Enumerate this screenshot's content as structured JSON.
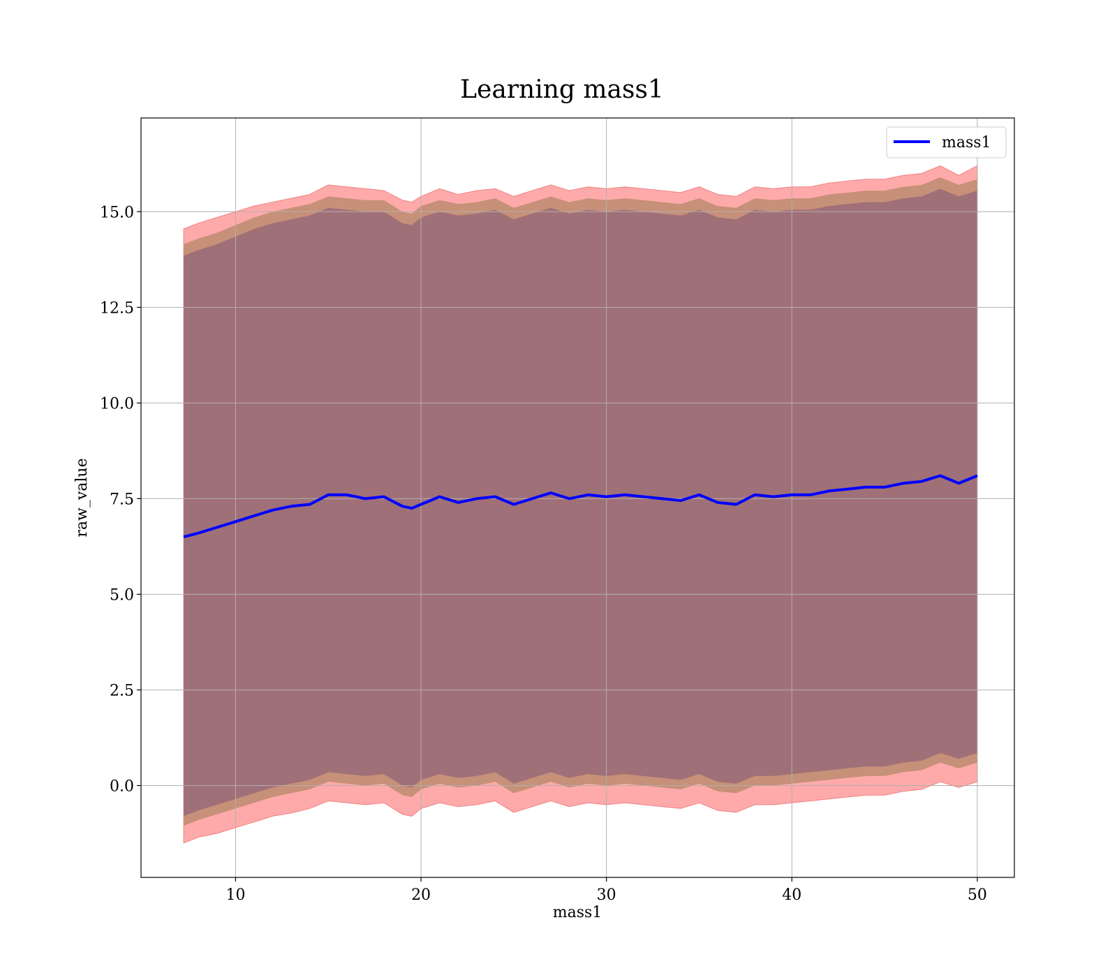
{
  "chart_data": {
    "type": "line",
    "title": "Learning mass1",
    "xlabel": "mass1",
    "ylabel": "raw_value",
    "xlim": [
      4.9,
      52.0
    ],
    "ylim": [
      -2.4,
      17.45
    ],
    "xticks": [
      10,
      20,
      30,
      40,
      50
    ],
    "xtick_labels": [
      "10",
      "20",
      "30",
      "40",
      "50"
    ],
    "yticks": [
      0.0,
      2.5,
      5.0,
      7.5,
      10.0,
      12.5,
      15.0
    ],
    "ytick_labels": [
      "0.0",
      "2.5",
      "5.0",
      "7.5",
      "10.0",
      "12.5",
      "15.0"
    ],
    "grid": true,
    "legend": {
      "location": "top-right",
      "entries": [
        "mass1"
      ]
    },
    "colors": {
      "line": "#0000ff",
      "outer_band": "#ffaaaa",
      "outer_band_edge": "#f08080",
      "middle_band": "#c79078",
      "inner_band": "#a07078",
      "grid": "#b0b0b0"
    },
    "x": [
      7.2,
      8.0,
      9.0,
      10.0,
      11.0,
      12.0,
      13.0,
      14.0,
      15.0,
      16.0,
      17.0,
      18.0,
      19.0,
      19.5,
      20.0,
      21.0,
      22.0,
      23.0,
      24.0,
      25.0,
      26.0,
      27.0,
      28.0,
      29.0,
      30.0,
      31.0,
      32.0,
      33.0,
      34.0,
      35.0,
      36.0,
      37.0,
      38.0,
      39.0,
      40.0,
      41.0,
      42.0,
      43.0,
      44.0,
      45.0,
      46.0,
      47.0,
      48.0,
      49.0,
      50.0
    ],
    "series": [
      {
        "name": "mass1",
        "values": [
          6.5,
          6.6,
          6.75,
          6.9,
          7.05,
          7.2,
          7.3,
          7.35,
          7.6,
          7.6,
          7.5,
          7.55,
          7.3,
          7.25,
          7.35,
          7.55,
          7.4,
          7.5,
          7.55,
          7.35,
          7.5,
          7.65,
          7.5,
          7.6,
          7.55,
          7.6,
          7.55,
          7.5,
          7.45,
          7.6,
          7.4,
          7.35,
          7.6,
          7.55,
          7.6,
          7.6,
          7.7,
          7.75,
          7.8,
          7.8,
          7.9,
          7.95,
          8.1,
          7.9,
          8.1
        ]
      }
    ],
    "bands": [
      {
        "lower": [
          -1.5,
          -1.35,
          -1.25,
          -1.1,
          -0.95,
          -0.8,
          -0.72,
          -0.6,
          -0.4,
          -0.45,
          -0.5,
          -0.45,
          -0.75,
          -0.8,
          -0.6,
          -0.45,
          -0.55,
          -0.5,
          -0.4,
          -0.7,
          -0.55,
          -0.4,
          -0.55,
          -0.45,
          -0.5,
          -0.45,
          -0.5,
          -0.55,
          -0.6,
          -0.45,
          -0.65,
          -0.7,
          -0.5,
          -0.5,
          -0.45,
          -0.4,
          -0.35,
          -0.3,
          -0.25,
          -0.25,
          -0.15,
          -0.1,
          0.1,
          -0.05,
          0.1
        ],
        "upper": [
          14.55,
          14.7,
          14.85,
          15.0,
          15.15,
          15.25,
          15.35,
          15.45,
          15.7,
          15.65,
          15.6,
          15.55,
          15.3,
          15.25,
          15.4,
          15.6,
          15.45,
          15.55,
          15.6,
          15.4,
          15.55,
          15.7,
          15.55,
          15.65,
          15.6,
          15.65,
          15.6,
          15.55,
          15.5,
          15.65,
          15.45,
          15.4,
          15.65,
          15.6,
          15.65,
          15.65,
          15.75,
          15.8,
          15.85,
          15.85,
          15.95,
          16.0,
          16.2,
          15.95,
          16.2
        ]
      },
      {
        "lower": [
          -1.05,
          -0.9,
          -0.75,
          -0.6,
          -0.45,
          -0.3,
          -0.2,
          -0.1,
          0.1,
          0.05,
          0.0,
          0.05,
          -0.25,
          -0.3,
          -0.1,
          0.05,
          -0.05,
          0.0,
          0.1,
          -0.2,
          -0.05,
          0.1,
          -0.05,
          0.05,
          0.0,
          0.05,
          0.0,
          -0.05,
          -0.1,
          0.05,
          -0.15,
          -0.2,
          0.0,
          0.0,
          0.05,
          0.1,
          0.15,
          0.2,
          0.25,
          0.25,
          0.35,
          0.4,
          0.6,
          0.45,
          0.6
        ]
      },
      {
        "lower": [
          -0.8,
          -0.65,
          -0.5,
          -0.35,
          -0.2,
          -0.05,
          0.05,
          0.15,
          0.35,
          0.3,
          0.25,
          0.3,
          0.0,
          -0.05,
          0.15,
          0.3,
          0.2,
          0.25,
          0.35,
          0.05,
          0.2,
          0.35,
          0.2,
          0.3,
          0.25,
          0.3,
          0.25,
          0.2,
          0.15,
          0.3,
          0.1,
          0.05,
          0.25,
          0.25,
          0.3,
          0.35,
          0.4,
          0.45,
          0.5,
          0.5,
          0.6,
          0.65,
          0.85,
          0.7,
          0.85
        ],
        "upper": [
          13.85,
          14.0,
          14.15,
          14.35,
          14.55,
          14.7,
          14.8,
          14.9,
          15.1,
          15.05,
          15.0,
          15.0,
          14.7,
          14.65,
          14.85,
          15.0,
          14.9,
          14.95,
          15.05,
          14.8,
          14.95,
          15.1,
          14.95,
          15.05,
          15.0,
          15.05,
          15.0,
          14.95,
          14.9,
          15.05,
          14.85,
          14.8,
          15.05,
          15.0,
          15.05,
          15.05,
          15.15,
          15.2,
          15.25,
          15.25,
          15.35,
          15.4,
          15.6,
          15.4,
          15.55
        ]
      }
    ]
  }
}
